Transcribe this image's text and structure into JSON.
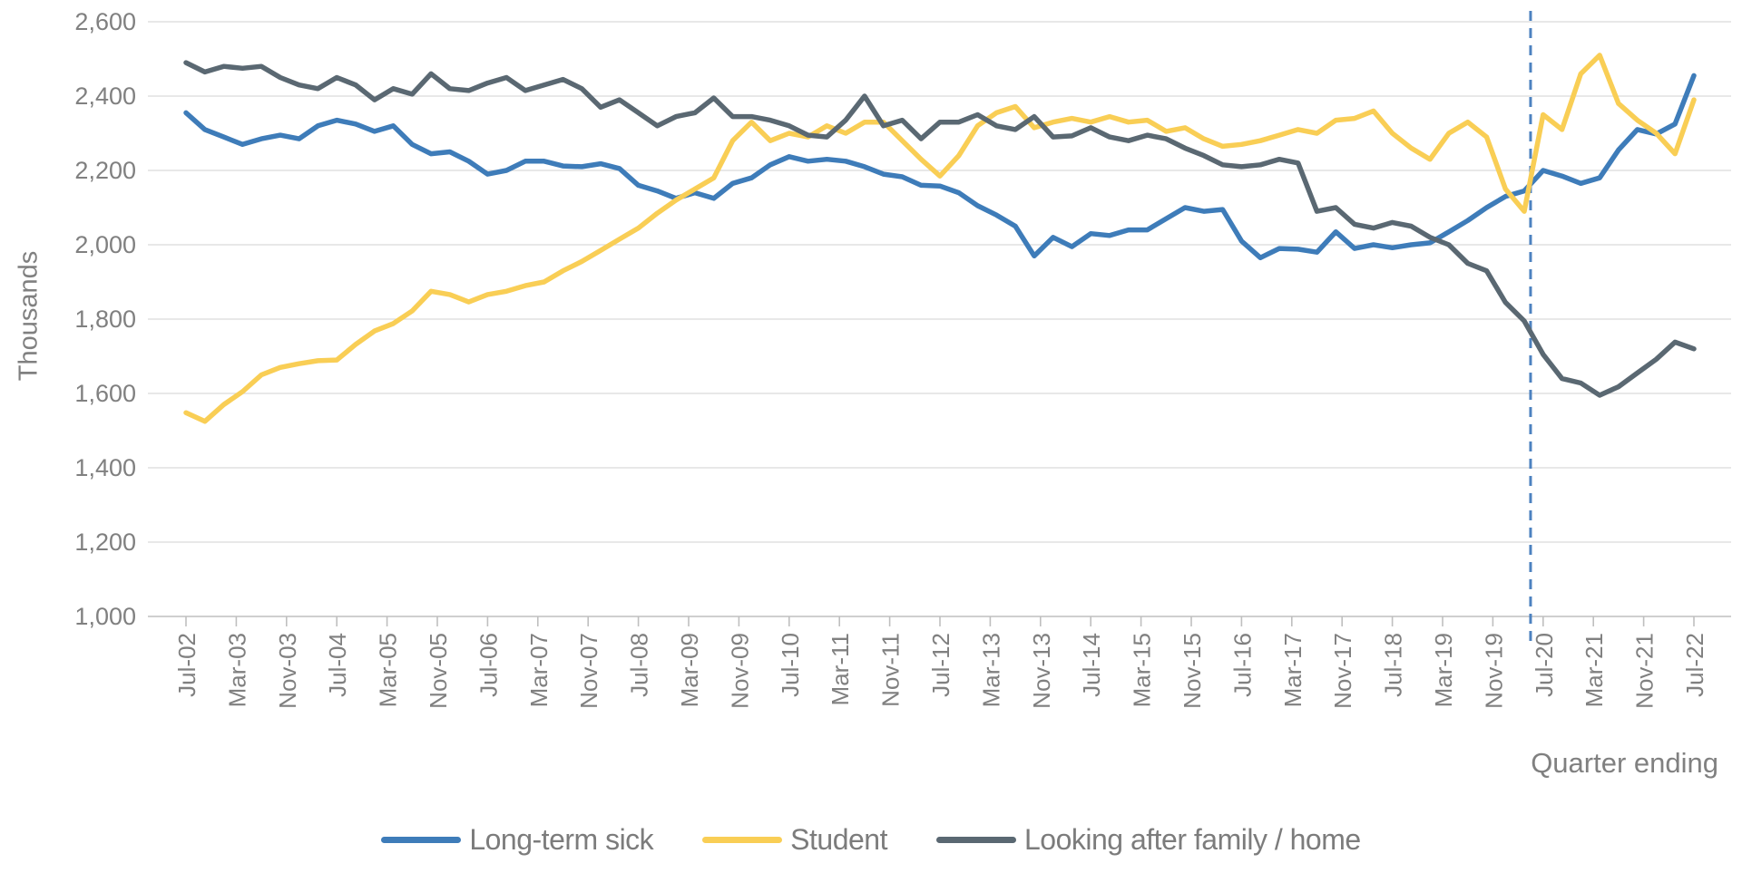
{
  "chart_data": {
    "type": "line",
    "title": "",
    "ylabel": "Thousands",
    "xlabel": "Quarter ending",
    "ylim": [
      1000,
      2600
    ],
    "grid": "on",
    "legend_position": "bottom",
    "y_ticks": {
      "values": [
        1000,
        1200,
        1400,
        1600,
        1800,
        2000,
        2200,
        2400,
        2600
      ],
      "labels": [
        "1,000",
        "1,200",
        "1,400",
        "1,600",
        "1,800",
        "2,000",
        "2,200",
        "2,400",
        "2,600"
      ]
    },
    "x_axis": {
      "start_label": "Jul-02",
      "end_label": "Jul-22",
      "total_months": 240,
      "data_step_months": 3,
      "tick_every_months": 8
    },
    "x_tick_labels": [
      "Jul-02",
      "Mar-03",
      "Nov-03",
      "Jul-04",
      "Mar-05",
      "Nov-05",
      "Jul-06",
      "Mar-07",
      "Nov-07",
      "Jul-08",
      "Mar-09",
      "Nov-09",
      "Jul-10",
      "Mar-11",
      "Nov-11",
      "Jul-12",
      "Mar-13",
      "Nov-13",
      "Jul-14",
      "Mar-15",
      "Nov-15",
      "Jul-16",
      "Mar-17",
      "Nov-17",
      "Jul-18",
      "Mar-19",
      "Nov-19",
      "Jul-20",
      "Mar-21",
      "Nov-21",
      "Jul-22"
    ],
    "dashed_marker": {
      "month_offset": 214,
      "color": "#4d82c0"
    },
    "colors": {
      "grid": "#d9d9d9",
      "axis": "#bfbfbf",
      "tick_text": "#808080"
    },
    "series": [
      {
        "name": "Long-term sick",
        "color": "#3e7cb9",
        "values": [
          2355,
          2310,
          2290,
          2270,
          2285,
          2295,
          2285,
          2320,
          2335,
          2325,
          2305,
          2320,
          2270,
          2245,
          2250,
          2225,
          2190,
          2200,
          2225,
          2225,
          2212,
          2210,
          2218,
          2205,
          2160,
          2145,
          2125,
          2140,
          2125,
          2165,
          2180,
          2215,
          2237,
          2225,
          2230,
          2225,
          2210,
          2190,
          2183,
          2160,
          2158,
          2140,
          2105,
          2080,
          2050,
          1970,
          2020,
          1995,
          2030,
          2025,
          2040,
          2040,
          2070,
          2100,
          2090,
          2095,
          2010,
          1965,
          1990,
          1988,
          1980,
          2035,
          1990,
          2000,
          1992,
          2000,
          2005,
          2035,
          2065,
          2100,
          2130,
          2145,
          2200,
          2185,
          2165,
          2180,
          2255,
          2310,
          2298,
          2325,
          2455
        ]
      },
      {
        "name": "Student",
        "color": "#f9ce55",
        "values": [
          1548,
          1525,
          1570,
          1605,
          1650,
          1670,
          1680,
          1688,
          1690,
          1732,
          1768,
          1788,
          1822,
          1875,
          1866,
          1846,
          1866,
          1875,
          1890,
          1900,
          1930,
          1955,
          1985,
          2015,
          2045,
          2085,
          2120,
          2150,
          2180,
          2280,
          2330,
          2280,
          2300,
          2290,
          2320,
          2300,
          2330,
          2330,
          2280,
          2230,
          2185,
          2240,
          2320,
          2355,
          2372,
          2315,
          2330,
          2340,
          2330,
          2345,
          2330,
          2335,
          2305,
          2315,
          2285,
          2265,
          2270,
          2280,
          2295,
          2310,
          2300,
          2335,
          2340,
          2360,
          2300,
          2260,
          2230,
          2300,
          2330,
          2290,
          2150,
          2090,
          2350,
          2310,
          2460,
          2510,
          2380,
          2335,
          2300,
          2245,
          2390
        ]
      },
      {
        "name": "Looking after family / home",
        "color": "#5a6872",
        "values": [
          2490,
          2465,
          2480,
          2475,
          2480,
          2450,
          2430,
          2420,
          2450,
          2430,
          2390,
          2420,
          2405,
          2460,
          2420,
          2415,
          2435,
          2450,
          2415,
          2430,
          2445,
          2420,
          2370,
          2390,
          2355,
          2320,
          2345,
          2355,
          2395,
          2345,
          2345,
          2335,
          2320,
          2295,
          2290,
          2335,
          2400,
          2320,
          2335,
          2285,
          2330,
          2330,
          2350,
          2320,
          2310,
          2345,
          2290,
          2293,
          2315,
          2290,
          2280,
          2295,
          2285,
          2260,
          2240,
          2215,
          2210,
          2215,
          2230,
          2220,
          2090,
          2100,
          2055,
          2045,
          2060,
          2050,
          2020,
          2000,
          1950,
          1930,
          1845,
          1795,
          1705,
          1640,
          1628,
          1595,
          1618,
          1655,
          1692,
          1738,
          1720
        ]
      }
    ]
  }
}
